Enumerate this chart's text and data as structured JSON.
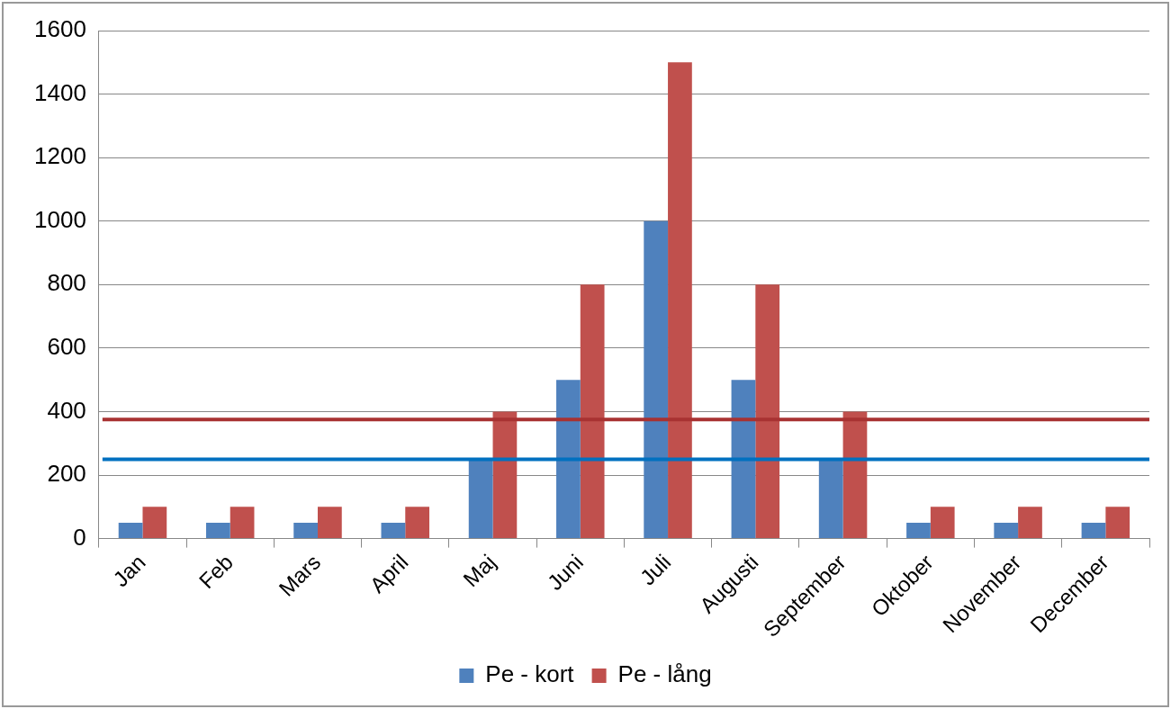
{
  "chart_data": {
    "type": "bar",
    "categories": [
      "Jan",
      "Feb",
      "Mars",
      "April",
      "Maj",
      "Juni",
      "Juli",
      "Augusti",
      "September",
      "Oktober",
      "November",
      "December"
    ],
    "series": [
      {
        "name": "Pe - kort",
        "color": "#4f81bd",
        "values": [
          50,
          50,
          50,
          50,
          250,
          500,
          1000,
          500,
          250,
          50,
          50,
          50
        ]
      },
      {
        "name": "Pe - lång",
        "color": "#c0504d",
        "values": [
          100,
          100,
          100,
          100,
          400,
          800,
          1500,
          800,
          400,
          100,
          100,
          100
        ]
      }
    ],
    "ylim": [
      0,
      1600
    ],
    "yticks": [
      0,
      200,
      400,
      600,
      800,
      1000,
      1200,
      1400,
      1600
    ],
    "grid": "y",
    "legend": "bottom",
    "ref_lines": [
      {
        "axis": "y",
        "value": 375,
        "color": "#a83232"
      },
      {
        "axis": "y",
        "value": 250,
        "color": "#0070c0"
      }
    ]
  }
}
